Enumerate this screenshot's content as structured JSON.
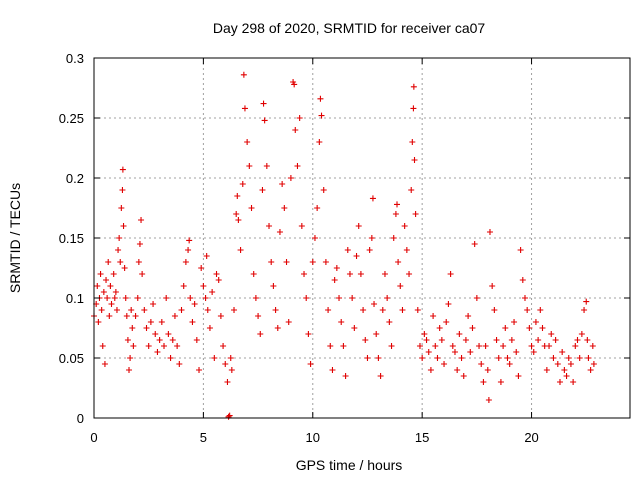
{
  "chart_data": {
    "type": "scatter",
    "title": "Day 298 of 2020, SRMTID for receiver ca07",
    "xlabel": "GPS time / hours",
    "ylabel": "SRMTID / TECUs",
    "xlim": [
      0,
      24.5
    ],
    "ylim": [
      0,
      0.3
    ],
    "xticks": [
      0,
      5,
      10,
      15,
      20
    ],
    "xtick_labels": [
      "0",
      "5",
      "10",
      "15",
      "20"
    ],
    "yticks": [
      0,
      0.05,
      0.1,
      0.15,
      0.2,
      0.25,
      0.3
    ],
    "ytick_labels": [
      "0",
      "0.05",
      "0.1",
      "0.15",
      "0.2",
      "0.25",
      "0.3"
    ],
    "grid": true,
    "marker": "+",
    "color": "#e00000",
    "series": [
      {
        "name": "SRMTID",
        "points": [
          [
            0.0,
            0.085
          ],
          [
            0.1,
            0.095
          ],
          [
            0.15,
            0.11
          ],
          [
            0.2,
            0.08
          ],
          [
            0.25,
            0.1
          ],
          [
            0.3,
            0.12
          ],
          [
            0.35,
            0.09
          ],
          [
            0.4,
            0.06
          ],
          [
            0.45,
            0.105
          ],
          [
            0.5,
            0.045
          ],
          [
            0.55,
            0.115
          ],
          [
            0.6,
            0.1
          ],
          [
            0.65,
            0.13
          ],
          [
            0.7,
            0.085
          ],
          [
            0.75,
            0.11
          ],
          [
            0.8,
            0.095
          ],
          [
            0.9,
            0.12
          ],
          [
            0.95,
            0.1
          ],
          [
            1.0,
            0.105
          ],
          [
            1.05,
            0.09
          ],
          [
            1.1,
            0.14
          ],
          [
            1.15,
            0.15
          ],
          [
            1.2,
            0.13
          ],
          [
            1.25,
            0.175
          ],
          [
            1.3,
            0.19
          ],
          [
            1.32,
            0.207
          ],
          [
            1.35,
            0.16
          ],
          [
            1.4,
            0.125
          ],
          [
            1.45,
            0.1
          ],
          [
            1.5,
            0.085
          ],
          [
            1.55,
            0.065
          ],
          [
            1.6,
            0.04
          ],
          [
            1.65,
            0.05
          ],
          [
            1.7,
            0.09
          ],
          [
            1.75,
            0.075
          ],
          [
            1.8,
            0.06
          ],
          [
            1.9,
            0.085
          ],
          [
            2.0,
            0.1
          ],
          [
            2.05,
            0.13
          ],
          [
            2.1,
            0.145
          ],
          [
            2.15,
            0.165
          ],
          [
            2.2,
            0.12
          ],
          [
            2.3,
            0.09
          ],
          [
            2.4,
            0.075
          ],
          [
            2.5,
            0.06
          ],
          [
            2.6,
            0.08
          ],
          [
            2.7,
            0.095
          ],
          [
            2.8,
            0.07
          ],
          [
            2.9,
            0.055
          ],
          [
            3.0,
            0.065
          ],
          [
            3.1,
            0.08
          ],
          [
            3.2,
            0.06
          ],
          [
            3.3,
            0.1
          ],
          [
            3.4,
            0.07
          ],
          [
            3.5,
            0.05
          ],
          [
            3.6,
            0.065
          ],
          [
            3.7,
            0.085
          ],
          [
            3.8,
            0.06
          ],
          [
            3.9,
            0.045
          ],
          [
            4.0,
            0.09
          ],
          [
            4.1,
            0.11
          ],
          [
            4.2,
            0.13
          ],
          [
            4.3,
            0.14
          ],
          [
            4.35,
            0.148
          ],
          [
            4.4,
            0.1
          ],
          [
            4.5,
            0.08
          ],
          [
            4.6,
            0.095
          ],
          [
            4.7,
            0.065
          ],
          [
            4.8,
            0.04
          ],
          [
            4.9,
            0.125
          ],
          [
            5.0,
            0.11
          ],
          [
            5.1,
            0.1
          ],
          [
            5.15,
            0.135
          ],
          [
            5.2,
            0.09
          ],
          [
            5.3,
            0.075
          ],
          [
            5.4,
            0.105
          ],
          [
            5.5,
            0.05
          ],
          [
            5.6,
            0.12
          ],
          [
            5.7,
            0.115
          ],
          [
            5.8,
            0.085
          ],
          [
            5.9,
            0.06
          ],
          [
            6.0,
            0.045
          ],
          [
            6.1,
            0.03
          ],
          [
            6.15,
            0.001
          ],
          [
            6.2,
            0.002
          ],
          [
            6.25,
            0.05
          ],
          [
            6.3,
            0.04
          ],
          [
            6.4,
            0.09
          ],
          [
            6.5,
            0.17
          ],
          [
            6.55,
            0.185
          ],
          [
            6.6,
            0.165
          ],
          [
            6.7,
            0.14
          ],
          [
            6.8,
            0.195
          ],
          [
            6.85,
            0.286
          ],
          [
            6.9,
            0.258
          ],
          [
            7.0,
            0.23
          ],
          [
            7.1,
            0.21
          ],
          [
            7.2,
            0.175
          ],
          [
            7.3,
            0.12
          ],
          [
            7.4,
            0.1
          ],
          [
            7.5,
            0.085
          ],
          [
            7.6,
            0.07
          ],
          [
            7.7,
            0.19
          ],
          [
            7.75,
            0.262
          ],
          [
            7.8,
            0.248
          ],
          [
            7.9,
            0.21
          ],
          [
            8.0,
            0.16
          ],
          [
            8.1,
            0.13
          ],
          [
            8.2,
            0.11
          ],
          [
            8.3,
            0.09
          ],
          [
            8.4,
            0.075
          ],
          [
            8.5,
            0.155
          ],
          [
            8.6,
            0.195
          ],
          [
            8.7,
            0.175
          ],
          [
            8.8,
            0.13
          ],
          [
            8.9,
            0.08
          ],
          [
            9.0,
            0.2
          ],
          [
            9.1,
            0.28
          ],
          [
            9.15,
            0.278
          ],
          [
            9.2,
            0.24
          ],
          [
            9.3,
            0.21
          ],
          [
            9.4,
            0.25
          ],
          [
            9.5,
            0.16
          ],
          [
            9.6,
            0.12
          ],
          [
            9.7,
            0.1
          ],
          [
            9.8,
            0.07
          ],
          [
            9.9,
            0.045
          ],
          [
            10.0,
            0.13
          ],
          [
            10.1,
            0.15
          ],
          [
            10.2,
            0.175
          ],
          [
            10.3,
            0.23
          ],
          [
            10.35,
            0.266
          ],
          [
            10.4,
            0.252
          ],
          [
            10.5,
            0.19
          ],
          [
            10.6,
            0.13
          ],
          [
            10.7,
            0.09
          ],
          [
            10.8,
            0.06
          ],
          [
            10.9,
            0.04
          ],
          [
            11.0,
            0.115
          ],
          [
            11.1,
            0.125
          ],
          [
            11.2,
            0.1
          ],
          [
            11.3,
            0.08
          ],
          [
            11.4,
            0.06
          ],
          [
            11.5,
            0.035
          ],
          [
            11.6,
            0.14
          ],
          [
            11.7,
            0.12
          ],
          [
            11.8,
            0.1
          ],
          [
            11.9,
            0.075
          ],
          [
            12.0,
            0.135
          ],
          [
            12.1,
            0.16
          ],
          [
            12.2,
            0.12
          ],
          [
            12.3,
            0.09
          ],
          [
            12.4,
            0.065
          ],
          [
            12.5,
            0.05
          ],
          [
            12.6,
            0.14
          ],
          [
            12.7,
            0.15
          ],
          [
            12.75,
            0.183
          ],
          [
            12.8,
            0.095
          ],
          [
            12.9,
            0.07
          ],
          [
            13.0,
            0.05
          ],
          [
            13.1,
            0.035
          ],
          [
            13.2,
            0.09
          ],
          [
            13.3,
            0.12
          ],
          [
            13.4,
            0.1
          ],
          [
            13.5,
            0.08
          ],
          [
            13.6,
            0.06
          ],
          [
            13.7,
            0.15
          ],
          [
            13.8,
            0.17
          ],
          [
            13.85,
            0.178
          ],
          [
            13.9,
            0.13
          ],
          [
            14.0,
            0.11
          ],
          [
            14.1,
            0.09
          ],
          [
            14.2,
            0.16
          ],
          [
            14.3,
            0.14
          ],
          [
            14.4,
            0.12
          ],
          [
            14.5,
            0.19
          ],
          [
            14.55,
            0.23
          ],
          [
            14.6,
            0.258
          ],
          [
            14.62,
            0.276
          ],
          [
            14.65,
            0.215
          ],
          [
            14.7,
            0.17
          ],
          [
            14.8,
            0.09
          ],
          [
            14.9,
            0.06
          ],
          [
            15.0,
            0.05
          ],
          [
            15.1,
            0.07
          ],
          [
            15.2,
            0.065
          ],
          [
            15.3,
            0.055
          ],
          [
            15.4,
            0.04
          ],
          [
            15.5,
            0.085
          ],
          [
            15.6,
            0.06
          ],
          [
            15.7,
            0.05
          ],
          [
            15.8,
            0.075
          ],
          [
            15.9,
            0.065
          ],
          [
            16.0,
            0.045
          ],
          [
            16.1,
            0.08
          ],
          [
            16.2,
            0.095
          ],
          [
            16.3,
            0.12
          ],
          [
            16.4,
            0.06
          ],
          [
            16.5,
            0.055
          ],
          [
            16.6,
            0.04
          ],
          [
            16.7,
            0.07
          ],
          [
            16.8,
            0.05
          ],
          [
            16.9,
            0.035
          ],
          [
            17.0,
            0.065
          ],
          [
            17.1,
            0.085
          ],
          [
            17.2,
            0.055
          ],
          [
            17.3,
            0.075
          ],
          [
            17.4,
            0.145
          ],
          [
            17.5,
            0.1
          ],
          [
            17.6,
            0.06
          ],
          [
            17.7,
            0.045
          ],
          [
            17.8,
            0.03
          ],
          [
            17.9,
            0.06
          ],
          [
            18.0,
            0.04
          ],
          [
            18.05,
            0.015
          ],
          [
            18.1,
            0.155
          ],
          [
            18.2,
            0.11
          ],
          [
            18.3,
            0.09
          ],
          [
            18.4,
            0.065
          ],
          [
            18.5,
            0.05
          ],
          [
            18.6,
            0.03
          ],
          [
            18.7,
            0.06
          ],
          [
            18.8,
            0.075
          ],
          [
            18.9,
            0.05
          ],
          [
            19.0,
            0.045
          ],
          [
            19.1,
            0.065
          ],
          [
            19.2,
            0.08
          ],
          [
            19.3,
            0.055
          ],
          [
            19.4,
            0.035
          ],
          [
            19.5,
            0.14
          ],
          [
            19.6,
            0.115
          ],
          [
            19.7,
            0.1
          ],
          [
            19.8,
            0.09
          ],
          [
            19.9,
            0.075
          ],
          [
            20.0,
            0.06
          ],
          [
            20.1,
            0.055
          ],
          [
            20.2,
            0.08
          ],
          [
            20.3,
            0.065
          ],
          [
            20.4,
            0.09
          ],
          [
            20.5,
            0.075
          ],
          [
            20.6,
            0.06
          ],
          [
            20.7,
            0.04
          ],
          [
            20.8,
            0.06
          ],
          [
            20.9,
            0.07
          ],
          [
            21.0,
            0.05
          ],
          [
            21.1,
            0.065
          ],
          [
            21.2,
            0.045
          ],
          [
            21.3,
            0.03
          ],
          [
            21.4,
            0.055
          ],
          [
            21.5,
            0.04
          ],
          [
            21.6,
            0.035
          ],
          [
            21.7,
            0.05
          ],
          [
            21.8,
            0.045
          ],
          [
            21.9,
            0.03
          ],
          [
            22.0,
            0.06
          ],
          [
            22.1,
            0.065
          ],
          [
            22.2,
            0.05
          ],
          [
            22.3,
            0.07
          ],
          [
            22.4,
            0.09
          ],
          [
            22.5,
            0.097
          ],
          [
            22.55,
            0.065
          ],
          [
            22.6,
            0.05
          ],
          [
            22.7,
            0.04
          ],
          [
            22.8,
            0.06
          ],
          [
            22.85,
            0.045
          ]
        ]
      }
    ]
  }
}
